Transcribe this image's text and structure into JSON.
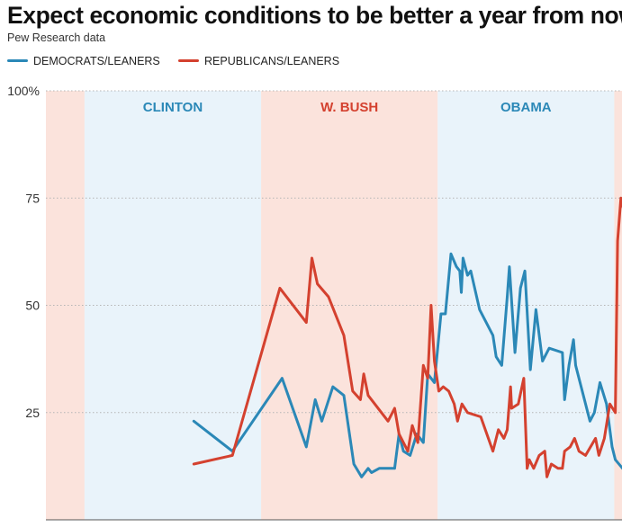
{
  "title": "Expect economic conditions to be better a year from now",
  "subtitle": "Pew Research data",
  "colors": {
    "democrats": "#2b88b7",
    "republicans": "#d4412f",
    "dem_band": "#e9f3fa",
    "rep_band": "#fbe3dc",
    "grid": "#b5b5b5"
  },
  "chart_data": {
    "type": "line",
    "title": "Expect economic conditions to be better a year from now",
    "subtitle": "Pew Research data",
    "xlabel": "",
    "ylabel": "",
    "x_range": [
      1991.3,
      2017.4
    ],
    "ylim": [
      0,
      100
    ],
    "yticks": [
      25,
      50,
      75,
      100
    ],
    "ytick_labels": [
      "25",
      "50",
      "75",
      "100%"
    ],
    "grid": true,
    "grid_style": "dotted horizontal",
    "legend": {
      "placement": "top-left",
      "entries": [
        "DEMOCRATS/LEANERS",
        "REPUBLICANS/LEANERS"
      ]
    },
    "eras": [
      {
        "label": "",
        "party": "republican",
        "start": 1991.3,
        "end": 1993.05
      },
      {
        "label": "CLINTON",
        "party": "democrat",
        "start": 1993.05,
        "end": 2001.05
      },
      {
        "label": "W. BUSH",
        "party": "republican",
        "start": 2001.05,
        "end": 2009.05
      },
      {
        "label": "OBAMA",
        "party": "democrat",
        "start": 2009.05,
        "end": 2017.05
      },
      {
        "label": "",
        "party": "republican",
        "start": 2017.05,
        "end": 2017.4
      }
    ],
    "series": [
      {
        "name": "DEMOCRATS/LEANERS",
        "color_key": "democrats",
        "points": [
          [
            1998.0,
            23
          ],
          [
            1999.75,
            16
          ],
          [
            2002.0,
            33
          ],
          [
            2003.1,
            17
          ],
          [
            2003.5,
            28
          ],
          [
            2003.8,
            23
          ],
          [
            2004.3,
            31
          ],
          [
            2004.8,
            29
          ],
          [
            2005.25,
            13
          ],
          [
            2005.6,
            10
          ],
          [
            2005.9,
            12
          ],
          [
            2006.05,
            11
          ],
          [
            2006.4,
            12
          ],
          [
            2007.1,
            12
          ],
          [
            2007.3,
            20
          ],
          [
            2007.5,
            16
          ],
          [
            2007.8,
            15
          ],
          [
            2008.1,
            20
          ],
          [
            2008.4,
            18
          ],
          [
            2008.6,
            34
          ],
          [
            2008.9,
            32
          ],
          [
            2009.2,
            48
          ],
          [
            2009.4,
            48
          ],
          [
            2009.65,
            62
          ],
          [
            2009.9,
            59
          ],
          [
            2010.05,
            58
          ],
          [
            2010.12,
            53
          ],
          [
            2010.2,
            61
          ],
          [
            2010.4,
            57
          ],
          [
            2010.55,
            58
          ],
          [
            2010.95,
            49
          ],
          [
            2011.55,
            43
          ],
          [
            2011.7,
            38
          ],
          [
            2011.95,
            36
          ],
          [
            2012.2,
            52
          ],
          [
            2012.3,
            59
          ],
          [
            2012.55,
            39
          ],
          [
            2012.8,
            54
          ],
          [
            2013.0,
            58
          ],
          [
            2013.25,
            35
          ],
          [
            2013.5,
            49
          ],
          [
            2013.8,
            37
          ],
          [
            2014.1,
            40
          ],
          [
            2014.7,
            39
          ],
          [
            2014.8,
            28
          ],
          [
            2015.0,
            36
          ],
          [
            2015.2,
            42
          ],
          [
            2015.3,
            36
          ],
          [
            2015.95,
            23
          ],
          [
            2016.15,
            25
          ],
          [
            2016.4,
            32
          ],
          [
            2016.7,
            27
          ],
          [
            2016.95,
            17
          ],
          [
            2017.1,
            14
          ],
          [
            2017.75,
            10
          ]
        ]
      },
      {
        "name": "REPUBLICANS/LEANERS",
        "color_key": "republicans",
        "points": [
          [
            1998.0,
            13
          ],
          [
            1999.75,
            15
          ],
          [
            2001.9,
            54
          ],
          [
            2003.1,
            46
          ],
          [
            2003.35,
            61
          ],
          [
            2003.6,
            55
          ],
          [
            2004.1,
            52
          ],
          [
            2004.8,
            43
          ],
          [
            2005.2,
            30
          ],
          [
            2005.55,
            28
          ],
          [
            2005.7,
            34
          ],
          [
            2005.9,
            29
          ],
          [
            2006.8,
            23
          ],
          [
            2007.1,
            26
          ],
          [
            2007.3,
            20
          ],
          [
            2007.7,
            16
          ],
          [
            2007.9,
            22
          ],
          [
            2008.15,
            18
          ],
          [
            2008.4,
            36
          ],
          [
            2008.6,
            33
          ],
          [
            2008.75,
            50
          ],
          [
            2008.9,
            37
          ],
          [
            2009.1,
            30
          ],
          [
            2009.3,
            31
          ],
          [
            2009.55,
            30
          ],
          [
            2009.8,
            27
          ],
          [
            2009.95,
            23
          ],
          [
            2010.15,
            27
          ],
          [
            2010.4,
            25
          ],
          [
            2011.0,
            24
          ],
          [
            2011.55,
            16
          ],
          [
            2011.8,
            21
          ],
          [
            2012.05,
            19
          ],
          [
            2012.2,
            21
          ],
          [
            2012.35,
            31
          ],
          [
            2012.4,
            26
          ],
          [
            2012.7,
            27
          ],
          [
            2012.95,
            33
          ],
          [
            2013.1,
            12
          ],
          [
            2013.2,
            14
          ],
          [
            2013.4,
            12
          ],
          [
            2013.65,
            15
          ],
          [
            2013.9,
            16
          ],
          [
            2014.0,
            10
          ],
          [
            2014.2,
            13
          ],
          [
            2014.5,
            12
          ],
          [
            2014.7,
            12
          ],
          [
            2014.8,
            16
          ],
          [
            2015.05,
            17
          ],
          [
            2015.25,
            19
          ],
          [
            2015.45,
            16
          ],
          [
            2015.75,
            15
          ],
          [
            2016.2,
            19
          ],
          [
            2016.35,
            15
          ],
          [
            2016.6,
            19
          ],
          [
            2016.85,
            27
          ],
          [
            2017.1,
            25
          ],
          [
            2017.2,
            65
          ],
          [
            2017.35,
            75
          ],
          [
            2017.9,
            63
          ]
        ]
      }
    ]
  }
}
